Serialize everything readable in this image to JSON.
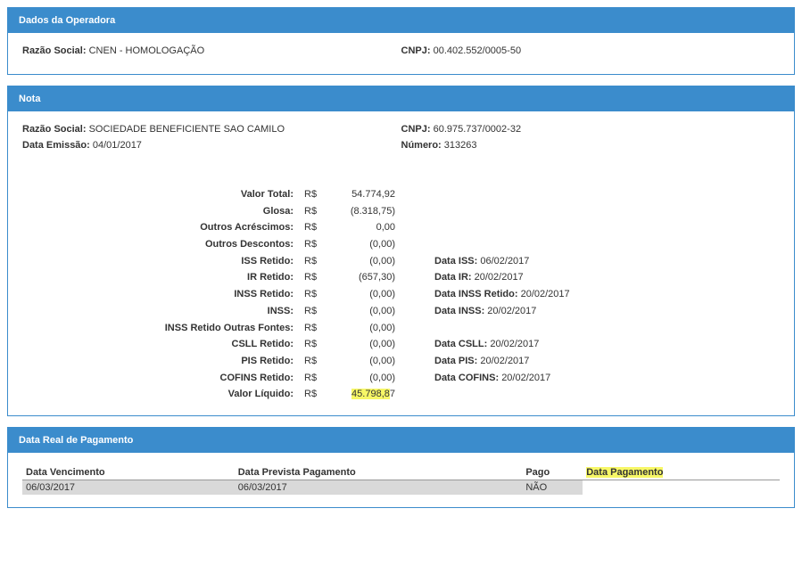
{
  "operadora": {
    "header": "Dados da Operadora",
    "razao_social_label": "Razão Social:",
    "razao_social": "CNEN - HOMOLOGAÇÃO",
    "cnpj_label": "CNPJ:",
    "cnpj": "00.402.552/0005-50"
  },
  "nota": {
    "header": "Nota",
    "razao_social_label": "Razão Social:",
    "razao_social": "SOCIEDADE BENEFICIENTE SAO CAMILO",
    "cnpj_label": "CNPJ:",
    "cnpj": "60.975.737/0002-32",
    "data_emissao_label": "Data Emissão:",
    "data_emissao": "04/01/2017",
    "numero_label": "Número:",
    "numero": "313263",
    "financials": [
      {
        "label": "Valor Total:",
        "currency": "R$",
        "value": "54.774,92",
        "date_label": "",
        "date": ""
      },
      {
        "label": "Glosa:",
        "currency": "R$",
        "value": "(8.318,75)",
        "date_label": "",
        "date": ""
      },
      {
        "label": "Outros Acréscimos:",
        "currency": "R$",
        "value": "0,00",
        "date_label": "",
        "date": ""
      },
      {
        "label": "Outros Descontos:",
        "currency": "R$",
        "value": "(0,00)",
        "date_label": "",
        "date": ""
      },
      {
        "label": "ISS Retido:",
        "currency": "R$",
        "value": "(0,00)",
        "date_label": "Data ISS:",
        "date": "06/02/2017"
      },
      {
        "label": "IR Retido:",
        "currency": "R$",
        "value": "(657,30)",
        "date_label": "Data IR:",
        "date": "20/02/2017"
      },
      {
        "label": "INSS Retido:",
        "currency": "R$",
        "value": "(0,00)",
        "date_label": "Data INSS Retido:",
        "date": "20/02/2017"
      },
      {
        "label": "INSS:",
        "currency": "R$",
        "value": "(0,00)",
        "date_label": "Data INSS:",
        "date": "20/02/2017"
      },
      {
        "label": "INSS Retido Outras Fontes:",
        "currency": "R$",
        "value": "(0,00)",
        "date_label": "",
        "date": ""
      },
      {
        "label": "CSLL Retido:",
        "currency": "R$",
        "value": "(0,00)",
        "date_label": "Data CSLL:",
        "date": "20/02/2017"
      },
      {
        "label": "PIS Retido:",
        "currency": "R$",
        "value": "(0,00)",
        "date_label": "Data PIS:",
        "date": "20/02/2017"
      },
      {
        "label": "COFINS Retido:",
        "currency": "R$",
        "value": "(0,00)",
        "date_label": "Data COFINS:",
        "date": "20/02/2017"
      },
      {
        "label": "Valor Líquido:",
        "currency": "R$",
        "value": "45.798,87",
        "date_label": "",
        "date": "",
        "highlight_value": true
      }
    ]
  },
  "pagamento": {
    "header": "Data Real de Pagamento",
    "columns": {
      "vencimento": "Data Vencimento",
      "prevista": "Data Prevista Pagamento",
      "pago": "Pago",
      "data_pagamento": "Data Pagamento"
    },
    "row": {
      "vencimento": "06/03/2017",
      "prevista": "06/03/2017",
      "pago": "NÃO",
      "data_pagamento": ""
    },
    "highlight_header": true
  }
}
